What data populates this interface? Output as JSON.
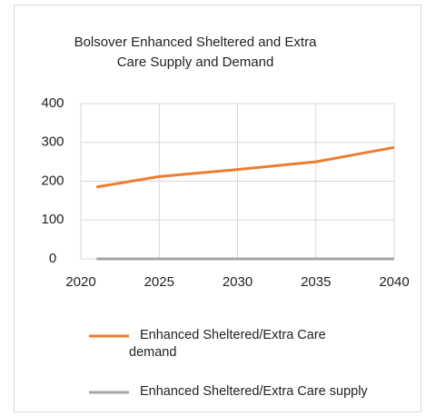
{
  "chart_data": {
    "type": "line",
    "title": "Bolsover Enhanced Sheltered and Extra Care Supply and Demand",
    "x": [
      2021,
      2025,
      2030,
      2035,
      2040
    ],
    "series": [
      {
        "name": "Enhanced Sheltered/Extra Care demand",
        "color": "#ed7d31",
        "values": [
          185,
          212,
          230,
          250,
          287
        ]
      },
      {
        "name": "Enhanced Sheltered/Extra Care supply",
        "color": "#a5a5a5",
        "values": [
          0,
          0,
          0,
          0,
          0
        ]
      }
    ],
    "xlim": [
      2020,
      2040
    ],
    "xticks": [
      2020,
      2025,
      2030,
      2035,
      2040
    ],
    "ylim": [
      0,
      400
    ],
    "yticks": [
      0,
      100,
      200,
      300,
      400
    ],
    "grid": true,
    "legend": "bottom"
  }
}
